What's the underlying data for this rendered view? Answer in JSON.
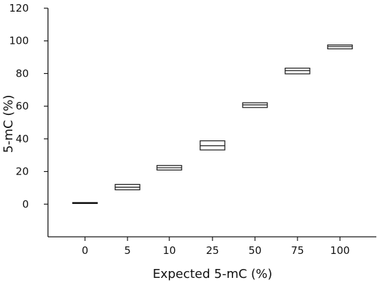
{
  "chart_data": {
    "type": "boxplot",
    "title": "",
    "xlabel": "Expected 5-mC (%)",
    "ylabel": "5-mC (%)",
    "ylim": [
      -20,
      120
    ],
    "yticks": [
      0,
      20,
      40,
      60,
      80,
      100,
      120
    ],
    "categories": [
      "0",
      "5",
      "10",
      "25",
      "50",
      "75",
      "100"
    ],
    "series": [
      {
        "boxes": [
          {
            "category": "0",
            "q1": 0.4,
            "median": 0.7,
            "q3": 1.0
          },
          {
            "category": "5",
            "q1": 8.8,
            "median": 10.4,
            "q3": 12.1
          },
          {
            "category": "10",
            "q1": 20.9,
            "median": 22.3,
            "q3": 23.7
          },
          {
            "category": "25",
            "q1": 33.2,
            "median": 35.8,
            "q3": 38.8
          },
          {
            "category": "50",
            "q1": 59.2,
            "median": 60.8,
            "q3": 62.1
          },
          {
            "category": "75",
            "q1": 79.8,
            "median": 81.8,
            "q3": 83.3
          },
          {
            "category": "100",
            "q1": 95.1,
            "median": 96.5,
            "q3": 97.5
          }
        ]
      }
    ],
    "grid": false,
    "legend": "none",
    "colors": {
      "axis": "#111111",
      "box_stroke": "#111111",
      "box_fill": "#ffffff",
      "text": "#111111"
    }
  }
}
